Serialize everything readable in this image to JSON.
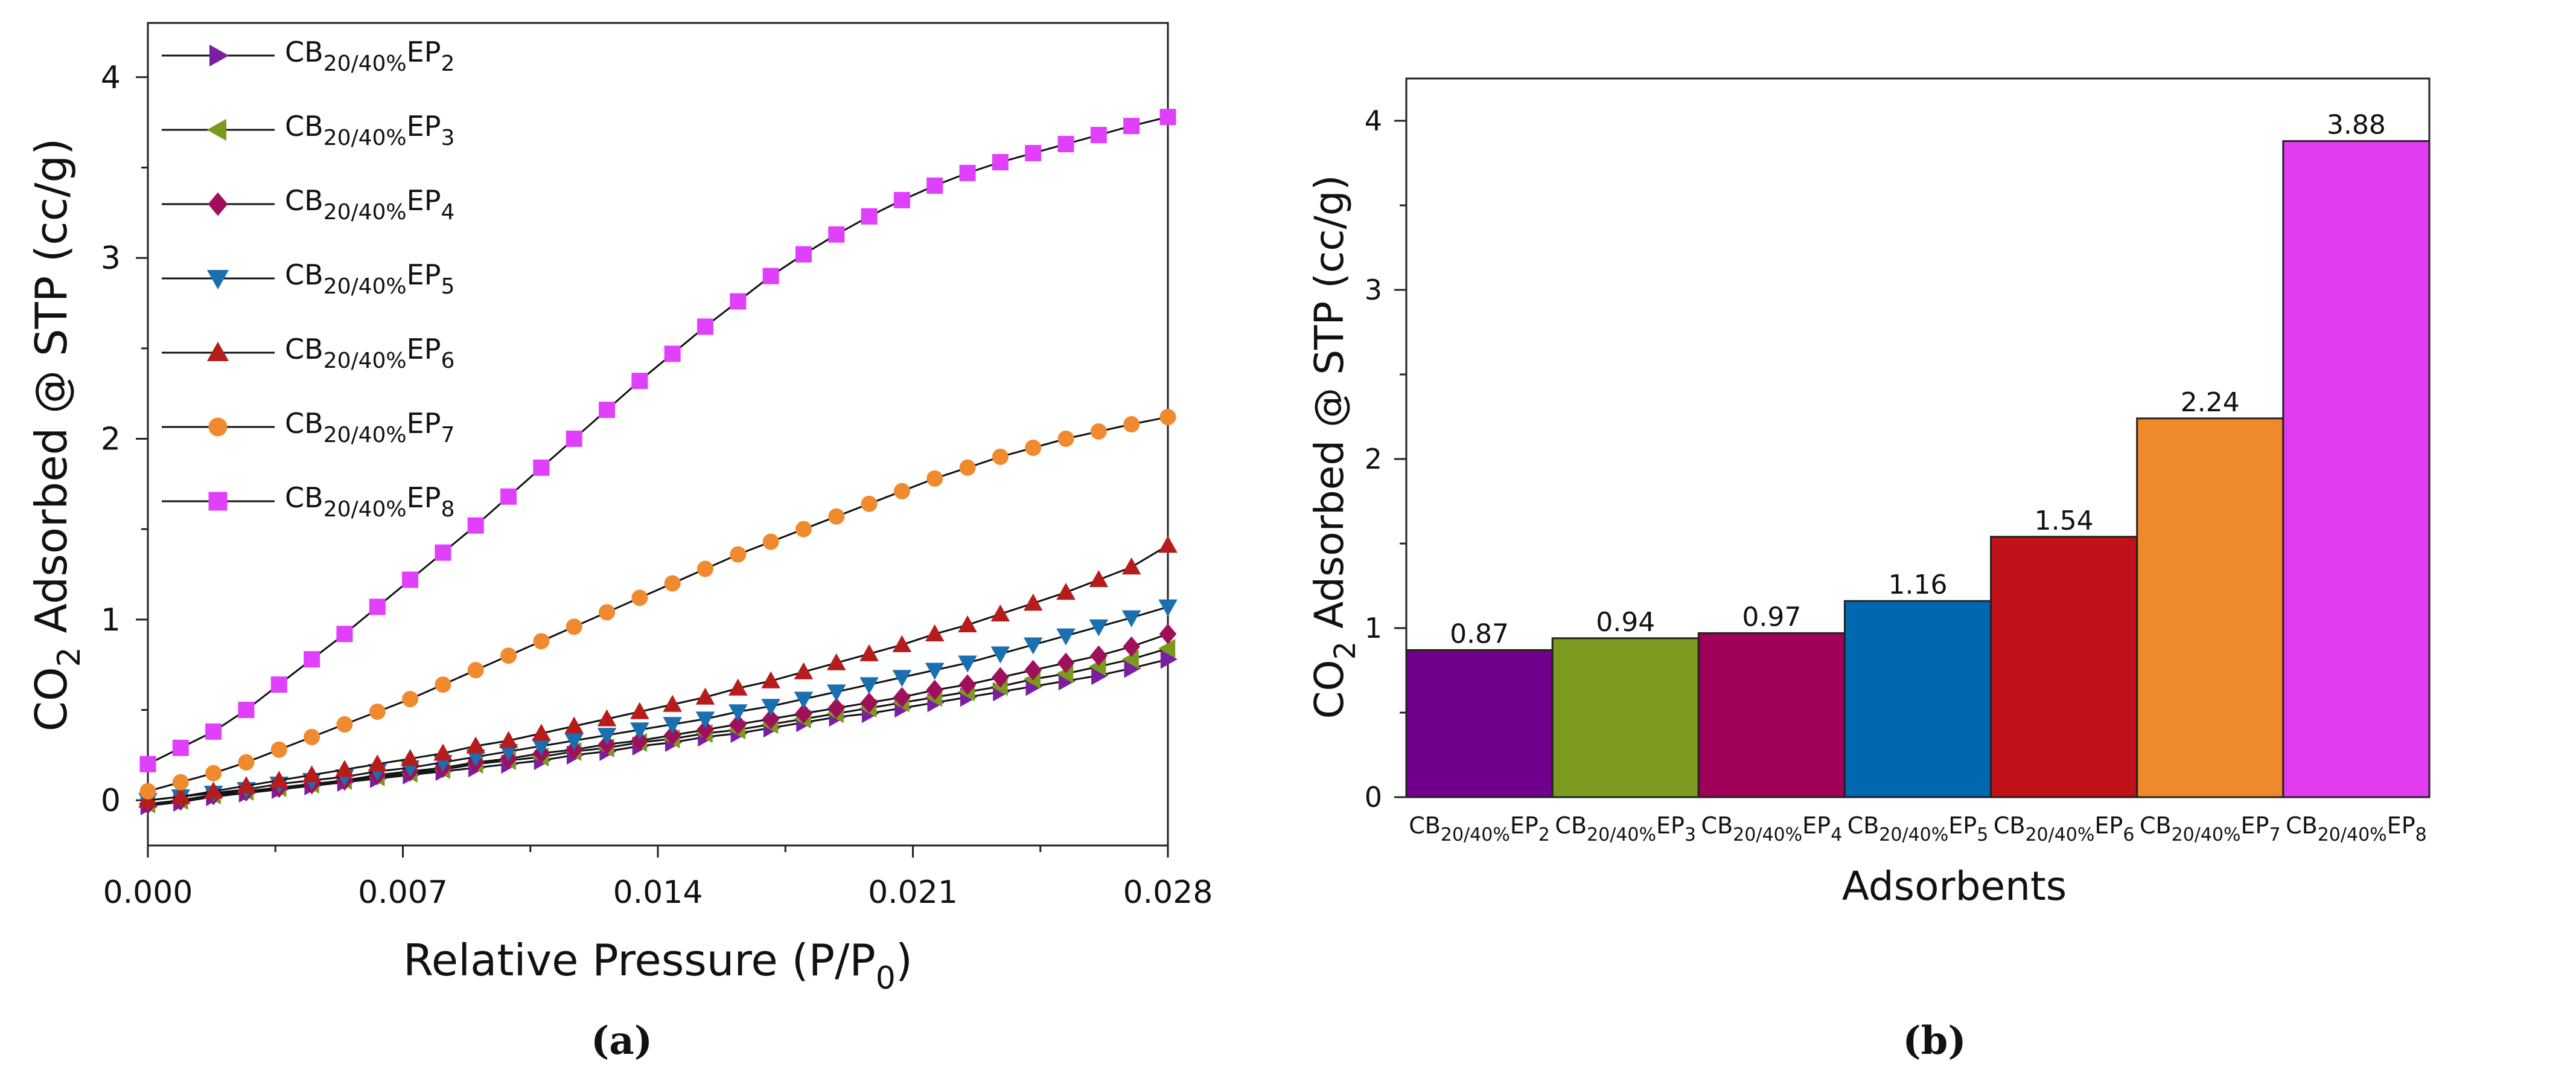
{
  "chart_data": [
    {
      "type": "line",
      "panel_label": "(a)",
      "xlabel": {
        "main": "Relative Pressure (P/P",
        "sub": "0",
        "tail": ")"
      },
      "ylabel": {
        "pre": "CO",
        "sub": "2",
        "post": " Adsorbed @ STP (cc/g)"
      },
      "xlim": [
        0,
        0.028
      ],
      "ylim": [
        -0.25,
        4.3
      ],
      "xticks": [
        0,
        0.007,
        0.014,
        0.021,
        0.028
      ],
      "xtick_labels": [
        "0.000",
        "0.007",
        "0.014",
        "0.021",
        "0.028"
      ],
      "yticks": [
        0,
        1,
        2,
        3,
        4
      ],
      "ytick_labels": [
        "0",
        "1",
        "2",
        "3",
        "4"
      ],
      "grid": false,
      "legend_position": "top-left",
      "x": [
        0,
        0.0009,
        0.0018,
        0.0027,
        0.0036,
        0.0045,
        0.0054,
        0.0063,
        0.0072,
        0.0081,
        0.009,
        0.0099,
        0.0108,
        0.0117,
        0.0126,
        0.0135,
        0.0144,
        0.0153,
        0.0162,
        0.0171,
        0.018,
        0.0189,
        0.0198,
        0.0207,
        0.0216,
        0.0225,
        0.0234,
        0.0243,
        0.0252,
        0.0261,
        0.027,
        0.028
      ],
      "series": [
        {
          "name": {
            "base": "CB",
            "sub": "20/40%",
            "mid": "EP",
            "sub2": "2"
          },
          "marker": "triangle-right",
          "color": "#7b1fa2",
          "values": [
            -0.03,
            -0.01,
            0.02,
            0.04,
            0.06,
            0.08,
            0.1,
            0.12,
            0.14,
            0.16,
            0.18,
            0.2,
            0.22,
            0.25,
            0.27,
            0.3,
            0.32,
            0.35,
            0.37,
            0.4,
            0.43,
            0.46,
            0.48,
            0.51,
            0.54,
            0.57,
            0.6,
            0.63,
            0.66,
            0.69,
            0.73,
            0.78
          ]
        },
        {
          "name": {
            "base": "CB",
            "sub": "20/40%",
            "mid": "EP",
            "sub2": "3"
          },
          "marker": "triangle-left",
          "color": "#7a9a1e",
          "values": [
            -0.02,
            0.0,
            0.03,
            0.05,
            0.07,
            0.09,
            0.11,
            0.13,
            0.15,
            0.17,
            0.2,
            0.22,
            0.24,
            0.27,
            0.29,
            0.32,
            0.34,
            0.37,
            0.39,
            0.42,
            0.45,
            0.48,
            0.51,
            0.54,
            0.57,
            0.6,
            0.63,
            0.67,
            0.7,
            0.74,
            0.78,
            0.84
          ]
        },
        {
          "name": {
            "base": "CB",
            "sub": "20/40%",
            "mid": "EP",
            "sub2": "4"
          },
          "marker": "diamond",
          "color": "#a0105a",
          "values": [
            -0.02,
            0.0,
            0.03,
            0.05,
            0.07,
            0.09,
            0.11,
            0.14,
            0.16,
            0.18,
            0.21,
            0.23,
            0.26,
            0.28,
            0.31,
            0.33,
            0.36,
            0.39,
            0.42,
            0.45,
            0.48,
            0.51,
            0.54,
            0.57,
            0.61,
            0.64,
            0.68,
            0.72,
            0.76,
            0.8,
            0.85,
            0.92
          ]
        },
        {
          "name": {
            "base": "CB",
            "sub": "20/40%",
            "mid": "EP",
            "sub2": "5"
          },
          "marker": "triangle-down",
          "color": "#1a6fb0",
          "values": [
            0.0,
            0.02,
            0.04,
            0.06,
            0.09,
            0.11,
            0.13,
            0.16,
            0.18,
            0.21,
            0.24,
            0.27,
            0.3,
            0.33,
            0.36,
            0.39,
            0.42,
            0.45,
            0.49,
            0.52,
            0.56,
            0.6,
            0.64,
            0.68,
            0.72,
            0.76,
            0.81,
            0.86,
            0.91,
            0.96,
            1.01,
            1.07
          ]
        },
        {
          "name": {
            "base": "CB",
            "sub": "20/40%",
            "mid": "EP",
            "sub2": "6"
          },
          "marker": "triangle-up",
          "color": "#b71c1c",
          "values": [
            0.0,
            0.02,
            0.05,
            0.08,
            0.11,
            0.14,
            0.17,
            0.2,
            0.23,
            0.26,
            0.3,
            0.33,
            0.37,
            0.41,
            0.45,
            0.49,
            0.53,
            0.57,
            0.62,
            0.66,
            0.71,
            0.76,
            0.81,
            0.86,
            0.92,
            0.97,
            1.03,
            1.09,
            1.15,
            1.22,
            1.29,
            1.41
          ]
        },
        {
          "name": {
            "base": "CB",
            "sub": "20/40%",
            "mid": "EP",
            "sub2": "7"
          },
          "marker": "circle",
          "color": "#ef8a2e",
          "values": [
            0.05,
            0.1,
            0.15,
            0.21,
            0.28,
            0.35,
            0.42,
            0.49,
            0.56,
            0.64,
            0.72,
            0.8,
            0.88,
            0.96,
            1.04,
            1.12,
            1.2,
            1.28,
            1.36,
            1.43,
            1.5,
            1.57,
            1.64,
            1.71,
            1.78,
            1.84,
            1.9,
            1.95,
            2.0,
            2.04,
            2.08,
            2.12
          ]
        },
        {
          "name": {
            "base": "CB",
            "sub": "20/40%",
            "mid": "EP",
            "sub2": "8"
          },
          "marker": "square",
          "color": "#e040fb",
          "values": [
            0.2,
            0.29,
            0.38,
            0.5,
            0.64,
            0.78,
            0.92,
            1.07,
            1.22,
            1.37,
            1.52,
            1.68,
            1.84,
            2.0,
            2.16,
            2.32,
            2.47,
            2.62,
            2.76,
            2.9,
            3.02,
            3.13,
            3.23,
            3.32,
            3.4,
            3.47,
            3.53,
            3.58,
            3.63,
            3.68,
            3.73,
            3.78
          ]
        }
      ]
    },
    {
      "type": "bar",
      "panel_label": "(b)",
      "xlabel": "Adsorbents",
      "ylabel": {
        "pre": "CO",
        "sub": "2",
        "post": " Adsorbed @ STP (cc/g)"
      },
      "ylim": [
        0,
        4.25
      ],
      "yticks": [
        0,
        1,
        2,
        3,
        4
      ],
      "ytick_labels": [
        "0",
        "1",
        "2",
        "3",
        "4"
      ],
      "grid": false,
      "categories": [
        {
          "base": "CB",
          "sub": "20/40%",
          "mid": "EP",
          "sub2": "2"
        },
        {
          "base": "CB",
          "sub": "20/40%",
          "mid": "EP",
          "sub2": "3"
        },
        {
          "base": "CB",
          "sub": "20/40%",
          "mid": "EP",
          "sub2": "4"
        },
        {
          "base": "CB",
          "sub": "20/40%",
          "mid": "EP",
          "sub2": "5"
        },
        {
          "base": "CB",
          "sub": "20/40%",
          "mid": "EP",
          "sub2": "6"
        },
        {
          "base": "CB",
          "sub": "20/40%",
          "mid": "EP",
          "sub2": "7"
        },
        {
          "base": "CB",
          "sub": "20/40%",
          "mid": "EP",
          "sub2": "8"
        }
      ],
      "values": [
        0.87,
        0.94,
        0.97,
        1.16,
        1.54,
        2.24,
        3.88
      ],
      "value_labels": [
        "0.87",
        "0.94",
        "0.97",
        "1.16",
        "1.54",
        "2.24",
        "3.88"
      ],
      "colors": [
        "#70008c",
        "#7b9a1e",
        "#a0005a",
        "#0068b0",
        "#c01018",
        "#ee8a2c",
        "#e23cf0"
      ]
    }
  ]
}
